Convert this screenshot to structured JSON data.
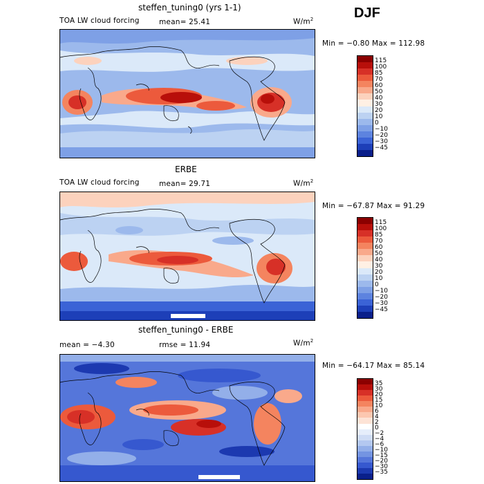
{
  "season": "DJF",
  "panels": [
    {
      "title": "steffen_tuning0 (yrs 1-1)",
      "left_label": "TOA LW cloud forcing",
      "mean_text": "mean=  25.41",
      "rmse_text": "",
      "units": "W/m",
      "units_sup": "2",
      "minmax": "Min =  −0.80 Max = 112.98",
      "levels": [
        "115",
        "100",
        "85",
        "70",
        "60",
        "50",
        "40",
        "30",
        "20",
        "10",
        "0",
        "−10",
        "−20",
        "−30",
        "−45"
      ]
    },
    {
      "title": "ERBE",
      "left_label": "TOA LW cloud forcing",
      "mean_text": "mean=  29.71",
      "rmse_text": "",
      "units": "W/m",
      "units_sup": "2",
      "minmax": "Min = −67.87 Max =  91.29",
      "levels": [
        "115",
        "100",
        "85",
        "70",
        "60",
        "50",
        "40",
        "30",
        "20",
        "10",
        "0",
        "−10",
        "−20",
        "−30",
        "−45"
      ]
    },
    {
      "title": "steffen_tuning0 - ERBE",
      "left_label": "mean =  −4.30",
      "mean_text": "",
      "rmse_text": "rmse =  11.94",
      "units": "W/m",
      "units_sup": "2",
      "minmax": "Min = −64.17 Max =  85.14",
      "levels": [
        "35",
        "30",
        "20",
        "15",
        "10",
        "6",
        "4",
        "2",
        "0",
        "−2",
        "−4",
        "−6",
        "−10",
        "−15",
        "−20",
        "−30",
        "−35"
      ]
    }
  ],
  "colors": {
    "scale16": [
      "#8b0000",
      "#b80f0a",
      "#d73027",
      "#ec5a3c",
      "#f4845f",
      "#f9a98b",
      "#fcd2bd",
      "#fff0e4",
      "#dbe9f9",
      "#bcd2f2",
      "#9cb9ec",
      "#7ea0e6",
      "#5d83df",
      "#3b63d6",
      "#1d3fb8",
      "#0a1f8a"
    ],
    "scale18": [
      "#8b0000",
      "#b80f0a",
      "#d73027",
      "#ec5a3c",
      "#f4845f",
      "#f9a98b",
      "#fcc7b0",
      "#fde3d6",
      "#ffffff",
      "#e6eefb",
      "#cfdcf5",
      "#b3c8f0",
      "#93afe9",
      "#7494e2",
      "#5576da",
      "#3658cf",
      "#1c39b0",
      "#0a1f8a"
    ],
    "map_base": "#bcd2f2"
  }
}
